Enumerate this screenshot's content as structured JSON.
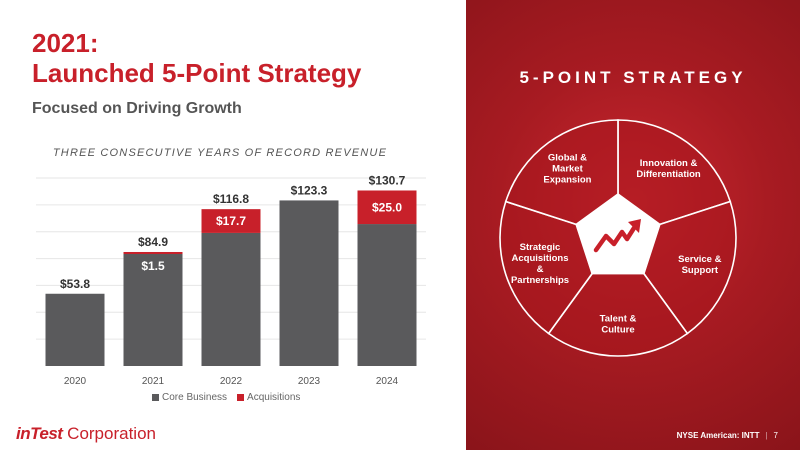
{
  "slide": {
    "title_line1": "2021:",
    "title_line2": "Launched 5-Point Strategy",
    "subtitle": "Focused on Driving Growth"
  },
  "colors": {
    "brand_red": "#c8202a",
    "core_bar": "#5a5a5c",
    "acq_bar": "#c8202a"
  },
  "chart_data": {
    "type": "bar",
    "stacked": true,
    "title": "THREE CONSECUTIVE YEARS OF RECORD REVENUE",
    "categories": [
      "2020",
      "2021",
      "2022",
      "2023",
      "2024"
    ],
    "series": [
      {
        "name": "Core Business",
        "values": [
          53.8,
          83.4,
          99.1,
          123.3,
          105.7
        ]
      },
      {
        "name": "Acquisitions",
        "values": [
          0,
          1.5,
          17.7,
          0,
          25.0
        ]
      }
    ],
    "total_labels": [
      "$53.8",
      "$84.9",
      "$116.8",
      "$123.3",
      "$130.7"
    ],
    "acq_labels": [
      "",
      "$1.5",
      "$17.7",
      "",
      "$25.0"
    ],
    "ylim": [
      0,
      140
    ],
    "grid": true,
    "legend_position": "bottom",
    "xlabel": "",
    "ylabel": ""
  },
  "legend": {
    "core_label": "Core Business",
    "acq_label": "Acquisitions"
  },
  "company": {
    "logo_brand": "inTest",
    "logo_suffix": " Corporation"
  },
  "strategy": {
    "title": "5-POINT STRATEGY",
    "segments": [
      {
        "lines": [
          "Innovation &",
          "Differentiation"
        ]
      },
      {
        "lines": [
          "Service &",
          "Support"
        ]
      },
      {
        "lines": [
          "Talent &",
          "Culture"
        ]
      },
      {
        "lines": [
          "Strategic",
          "Acquisitions",
          "&",
          "Partnerships"
        ]
      },
      {
        "lines": [
          "Global &",
          "Market",
          "Expansion"
        ]
      }
    ],
    "center_icon": "growth-arrow-icon"
  },
  "footer": {
    "ticker": "NYSE American: INTT",
    "separator": "|",
    "page": "7"
  }
}
